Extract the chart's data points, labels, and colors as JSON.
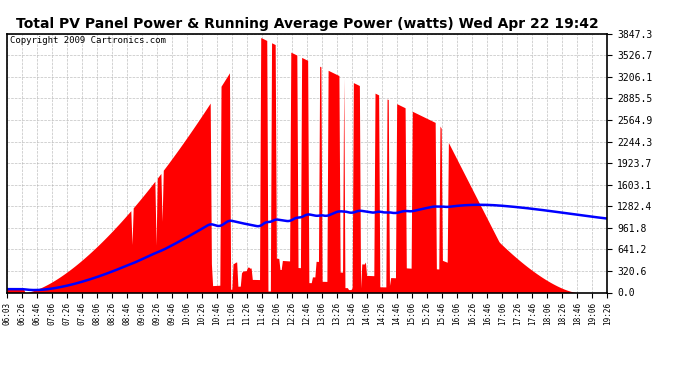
{
  "title": "Total PV Panel Power & Running Average Power (watts) Wed Apr 22 19:42",
  "copyright": "Copyright 2009 Cartronics.com",
  "yticks": [
    0.0,
    320.6,
    641.2,
    961.8,
    1282.4,
    1603.1,
    1923.7,
    2244.3,
    2564.9,
    2885.5,
    3206.1,
    3526.7,
    3847.3
  ],
  "ymax": 3847.3,
  "ymin": 0.0,
  "xtick_labels": [
    "06:03",
    "06:26",
    "06:46",
    "07:06",
    "07:26",
    "07:46",
    "08:06",
    "08:26",
    "08:46",
    "09:06",
    "09:26",
    "09:46",
    "10:06",
    "10:26",
    "10:46",
    "11:06",
    "11:26",
    "11:46",
    "12:06",
    "12:26",
    "12:46",
    "13:06",
    "13:26",
    "13:46",
    "14:06",
    "14:26",
    "14:46",
    "15:06",
    "15:26",
    "15:46",
    "16:06",
    "16:26",
    "16:46",
    "17:06",
    "17:26",
    "17:46",
    "18:06",
    "18:26",
    "18:46",
    "19:06",
    "19:26"
  ],
  "background_color": "#ffffff",
  "plot_bg_color": "#ffffff",
  "bar_color": "#ff0000",
  "line_color": "#0000ff",
  "grid_color": "#b0b0b0",
  "title_fontsize": 10,
  "copyright_fontsize": 6.5
}
